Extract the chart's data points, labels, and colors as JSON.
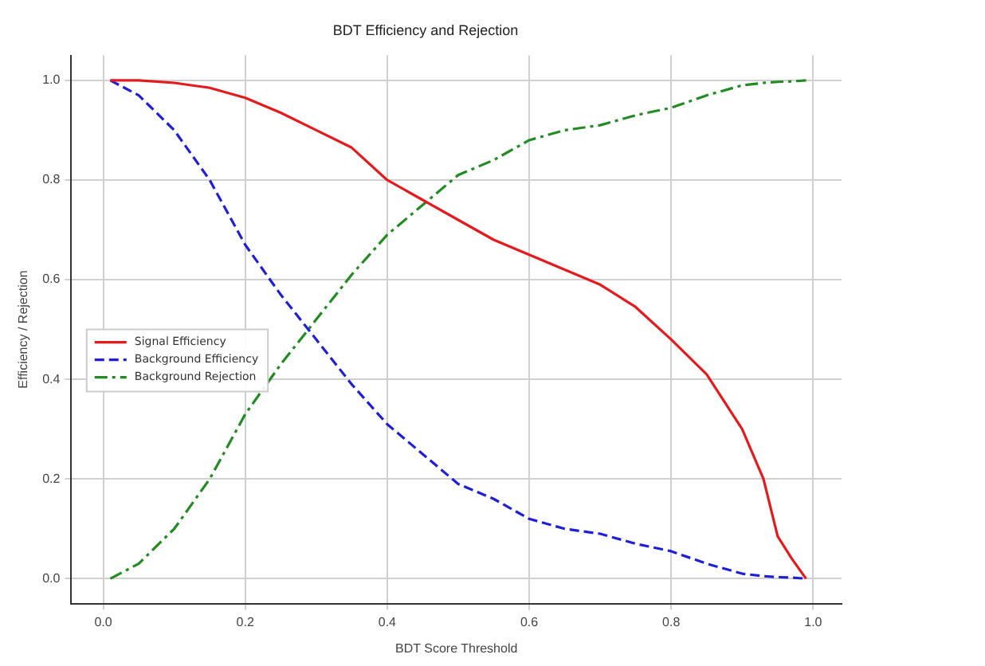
{
  "chart_data": {
    "type": "line",
    "title": "BDT Efficiency and Rejection",
    "xlabel": "BDT Score Threshold",
    "ylabel": "Efficiency / Rejection",
    "xlim": [
      -0.045,
      1.04
    ],
    "ylim": [
      -0.05,
      1.05
    ],
    "xticks": [
      {
        "value": 0,
        "label": "0.0"
      },
      0.2,
      0.4,
      0.6,
      0.8,
      {
        "value": 1,
        "label": "1.0"
      }
    ],
    "yticks": [
      {
        "value": 0,
        "label": "0.0"
      },
      0.2,
      0.4,
      0.6,
      0.8,
      {
        "value": 1,
        "label": "1.0"
      }
    ],
    "x": [
      0.01,
      0.05,
      0.1,
      0.15,
      0.2,
      0.25,
      0.3,
      0.35,
      0.4,
      0.45,
      0.5,
      0.55,
      0.6,
      0.65,
      0.7,
      0.75,
      0.8,
      0.85,
      0.9,
      0.93,
      0.95,
      0.97,
      0.99
    ],
    "grid": true,
    "legend": "center left",
    "marker": "none",
    "series": [
      {
        "name": "Signal Efficiency",
        "color": "#e41a1c",
        "line_style": "solid",
        "values": [
          1.0,
          1.0,
          0.995,
          0.985,
          0.965,
          0.935,
          0.9,
          0.865,
          0.8,
          0.76,
          0.72,
          0.68,
          0.65,
          0.62,
          0.59,
          0.545,
          0.48,
          0.41,
          0.3,
          0.2,
          0.085,
          0.04,
          0.0
        ]
      },
      {
        "name": "Background Efficiency",
        "color": "#1f1fd6",
        "line_style": "dashed",
        "values": [
          1.0,
          0.97,
          0.9,
          0.8,
          0.67,
          0.57,
          0.48,
          0.39,
          0.31,
          0.25,
          0.19,
          0.16,
          0.12,
          0.1,
          0.09,
          0.07,
          0.055,
          0.03,
          0.01,
          0.005,
          0.003,
          0.002,
          0.0
        ]
      },
      {
        "name": "Background Rejection",
        "color": "#228b22",
        "line_style": "dashdot",
        "values": [
          0.0,
          0.03,
          0.1,
          0.2,
          0.33,
          0.43,
          0.52,
          0.61,
          0.69,
          0.75,
          0.81,
          0.84,
          0.88,
          0.9,
          0.91,
          0.93,
          0.945,
          0.97,
          0.99,
          0.995,
          0.997,
          0.998,
          1.0
        ]
      }
    ]
  }
}
